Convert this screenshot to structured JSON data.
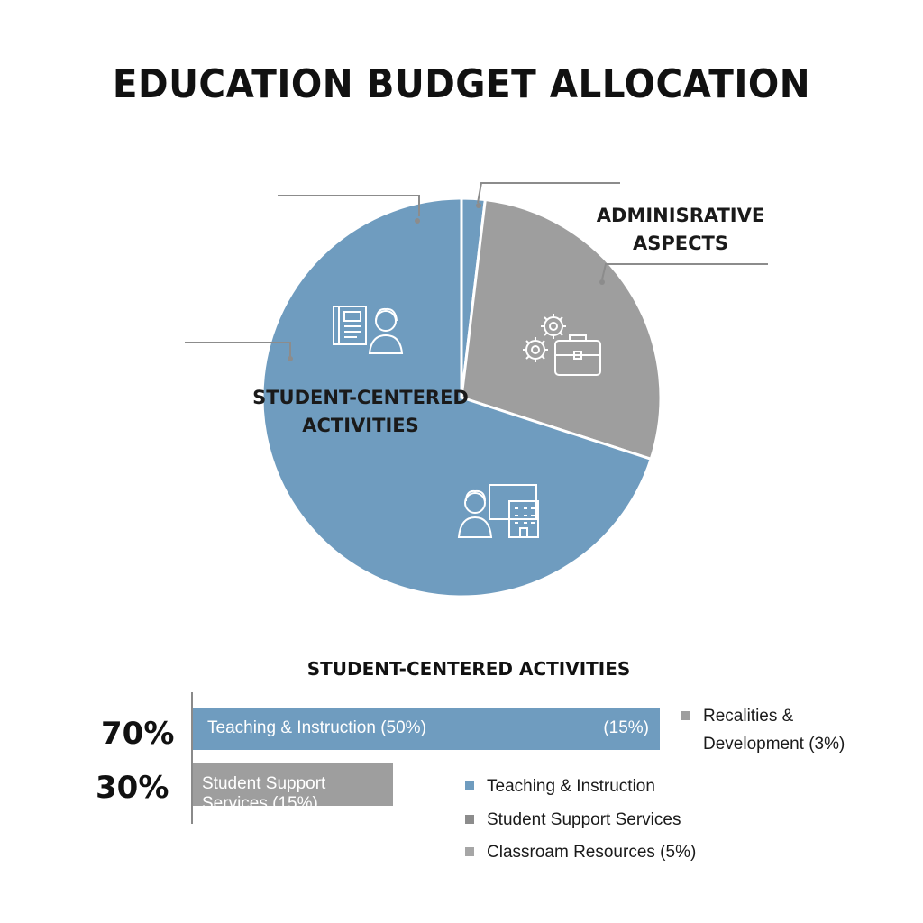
{
  "title": "EDUCATION BUDGET ALLOCATION",
  "colors": {
    "student": "#6f9cbf",
    "admin": "#9e9e9e",
    "leader": "#8c8c8c",
    "text": "#111111"
  },
  "chart_data": [
    {
      "type": "pie",
      "title": "EDUCATION BUDGET ALLOCATION",
      "slices": [
        {
          "label": "",
          "value": 1.9,
          "color": "#6f9cbf"
        },
        {
          "label": "ADMINISRATIVE ASPECTS",
          "label_lines": [
            "ADMINISRATIVE",
            "ASPECTS"
          ],
          "value": 28.1,
          "color": "#9e9e9e",
          "icons": [
            "gears-icon",
            "briefcase-icon"
          ]
        },
        {
          "label": "STUDENT-CENTERED ACTIVITIES",
          "label_lines": [
            "STUDENT-CENTERED",
            "ACTIVITIES"
          ],
          "value": 70.0,
          "color": "#6f9cbf",
          "icons": [
            "book-student-icon",
            "student-computer-icon"
          ]
        }
      ]
    },
    {
      "type": "bar",
      "orientation": "horizontal",
      "title": "STUDENT-CENTERED ACTIVITIES",
      "rows": [
        {
          "percent_label": "70%",
          "label": "Teaching & Instruction (50%)",
          "end_label": "(15%)",
          "value": 70,
          "color": "#6f9cbf"
        },
        {
          "percent_label": "30%",
          "label": "Student Support Services (15%)",
          "end_label": "",
          "value": 30,
          "color": "#9e9e9e"
        }
      ],
      "xlim": [
        0,
        100
      ],
      "legend": [
        {
          "text": "Recalities & Development (3%)",
          "lines": [
            "Recalities &",
            "Development (3%)"
          ],
          "color": "#9e9e9e"
        },
        {
          "text": "Teaching & Instruction",
          "color": "#6f9cbf"
        },
        {
          "text": "Student Support Services",
          "color": "#8c8c8c"
        },
        {
          "text": "Classroam Resources (5%)",
          "color": "#a6a6a6"
        }
      ]
    }
  ]
}
